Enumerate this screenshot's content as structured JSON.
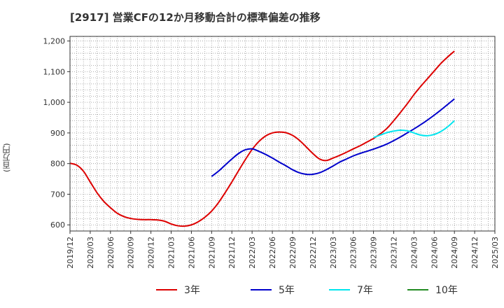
{
  "chart_data": {
    "type": "line",
    "title": "[2917]  営業CFの12か月移動合計の標準偏差の推移",
    "ylabel": "(百万円)",
    "xlabel": "",
    "ylim": [
      580,
      1215
    ],
    "xlim": [
      "2019/12",
      "2025/03"
    ],
    "y_ticks": [
      "600",
      "700",
      "800",
      "900",
      "1,000",
      "1,100",
      "1,200"
    ],
    "x_ticks": [
      "2019/12",
      "2020/03",
      "2020/06",
      "2020/09",
      "2020/12",
      "2021/03",
      "2021/06",
      "2021/09",
      "2021/12",
      "2022/03",
      "2022/06",
      "2022/09",
      "2022/12",
      "2023/03",
      "2023/06",
      "2023/09",
      "2023/12",
      "2024/03",
      "2024/06",
      "2024/09",
      "2024/12",
      "2025/03"
    ],
    "grid": true,
    "legend_position": "bottom",
    "series": [
      {
        "name": "3年",
        "color": "#dd0000",
        "x": [
          "2019/12",
          "2020/01",
          "2020/02",
          "2020/03",
          "2020/04",
          "2020/05",
          "2020/06",
          "2020/07",
          "2020/08",
          "2020/09",
          "2020/10",
          "2020/11",
          "2020/12",
          "2021/01",
          "2021/02",
          "2021/03",
          "2021/04",
          "2021/05",
          "2021/06",
          "2021/07",
          "2021/08",
          "2021/09",
          "2021/10",
          "2021/11",
          "2021/12",
          "2022/01",
          "2022/02",
          "2022/03",
          "2022/04",
          "2022/05",
          "2022/06",
          "2022/07",
          "2022/08",
          "2022/09",
          "2022/10",
          "2022/11",
          "2022/12",
          "2023/01",
          "2023/02",
          "2023/03",
          "2023/04",
          "2023/05",
          "2023/06",
          "2023/07",
          "2023/08",
          "2023/09",
          "2023/10",
          "2023/11",
          "2023/12",
          "2024/01",
          "2024/02",
          "2024/03",
          "2024/04",
          "2024/05",
          "2024/06",
          "2024/07",
          "2024/08",
          "2024/09"
        ],
        "values": [
          801,
          795,
          775,
          740,
          705,
          677,
          656,
          638,
          627,
          621,
          618,
          617,
          617,
          616,
          612,
          603,
          597,
          596,
          600,
          610,
          625,
          645,
          672,
          705,
          740,
          777,
          813,
          846,
          872,
          890,
          900,
          903,
          901,
          892,
          876,
          855,
          833,
          815,
          810,
          818,
          827,
          837,
          848,
          858,
          870,
          882,
          897,
          915,
          940,
          967,
          995,
          1025,
          1052,
          1077,
          1102,
          1127,
          1148,
          1167
        ]
      },
      {
        "name": "5年",
        "color": "#0000cc",
        "x": [
          "2021/09",
          "2021/10",
          "2021/11",
          "2021/12",
          "2022/01",
          "2022/02",
          "2022/03",
          "2022/04",
          "2022/05",
          "2022/06",
          "2022/07",
          "2022/08",
          "2022/09",
          "2022/10",
          "2022/11",
          "2022/12",
          "2023/01",
          "2023/02",
          "2023/03",
          "2023/04",
          "2023/05",
          "2023/06",
          "2023/07",
          "2023/08",
          "2023/09",
          "2023/10",
          "2023/11",
          "2023/12",
          "2024/01",
          "2024/02",
          "2024/03",
          "2024/04",
          "2024/05",
          "2024/06",
          "2024/07",
          "2024/08",
          "2024/09"
        ],
        "values": [
          758,
          775,
          795,
          815,
          833,
          845,
          848,
          840,
          830,
          818,
          805,
          793,
          780,
          770,
          765,
          765,
          770,
          780,
          792,
          805,
          815,
          825,
          833,
          840,
          847,
          855,
          864,
          875,
          887,
          900,
          913,
          927,
          942,
          958,
          975,
          993,
          1011
        ]
      },
      {
        "name": "7年",
        "color": "#00e5ee",
        "x": [
          "2023/09",
          "2023/10",
          "2023/11",
          "2023/12",
          "2024/01",
          "2024/02",
          "2024/03",
          "2024/04",
          "2024/05",
          "2024/06",
          "2024/07",
          "2024/08",
          "2024/09"
        ],
        "values": [
          885,
          893,
          901,
          906,
          909,
          907,
          900,
          893,
          891,
          895,
          905,
          920,
          940
        ]
      },
      {
        "name": "10年",
        "color": "#228b22",
        "x": [],
        "values": []
      }
    ]
  }
}
